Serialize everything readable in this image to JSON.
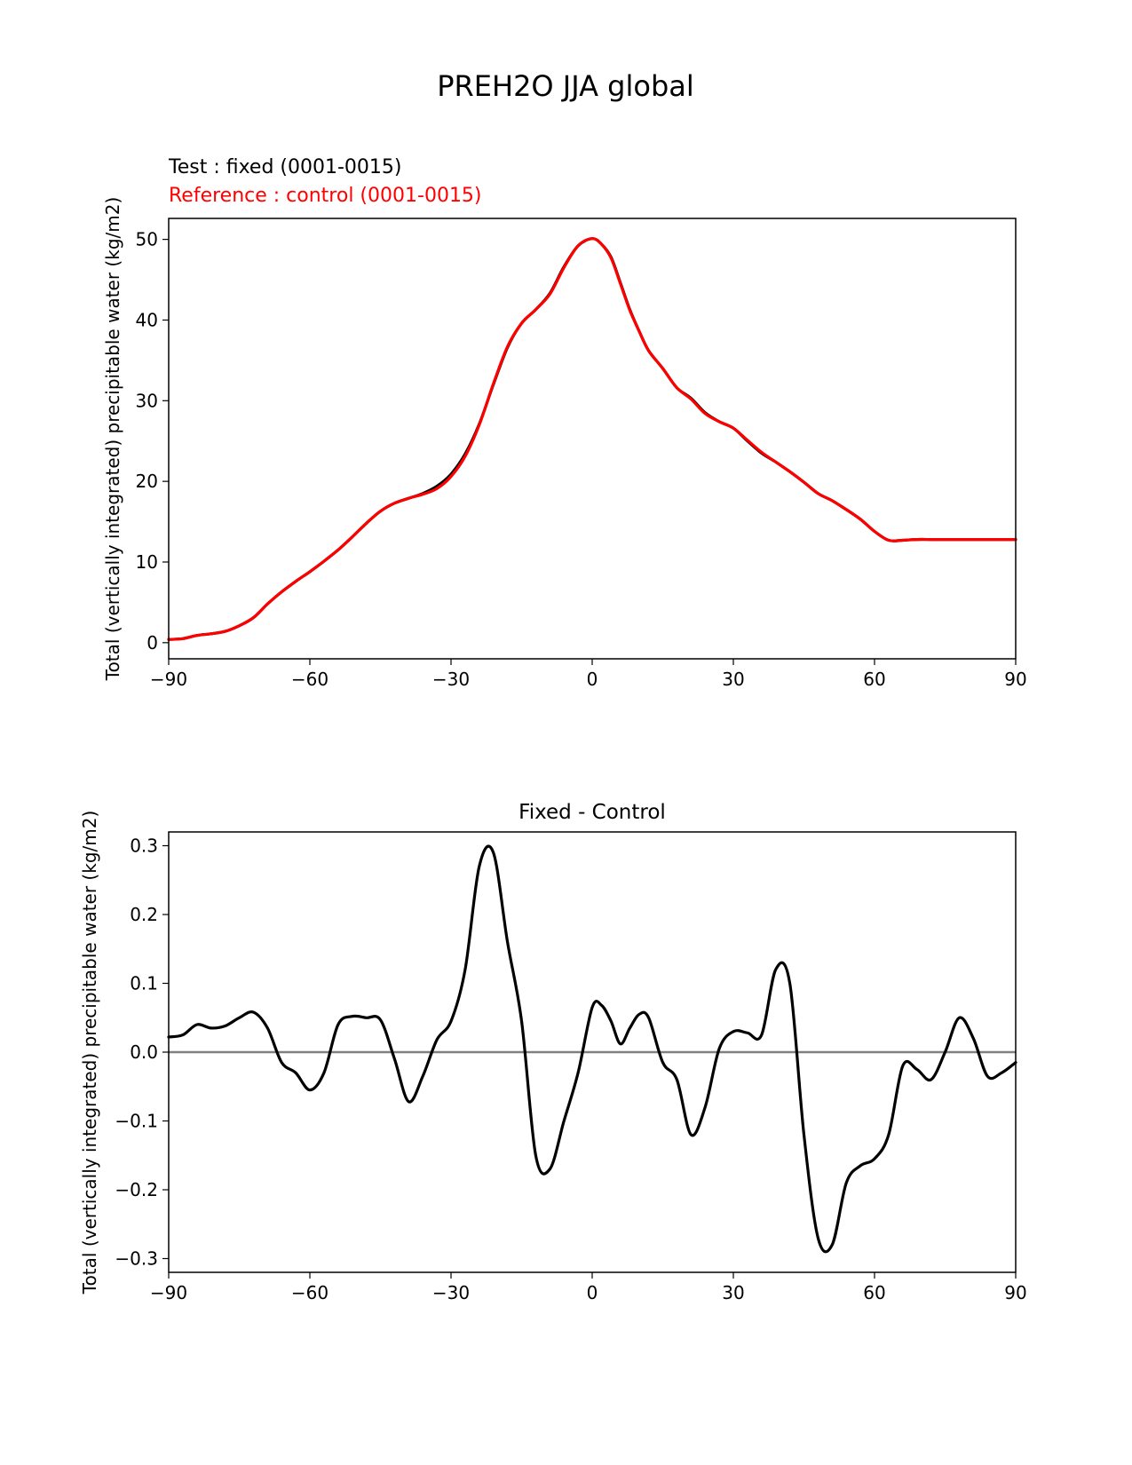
{
  "figure": {
    "title": "PREH2O JJA global"
  },
  "chart_data": [
    {
      "type": "line",
      "title": "",
      "legend_lines": [
        "Test : fixed (0001-0015)",
        "Reference : control (0001-0015)"
      ],
      "xlabel": "",
      "ylabel": "Total (vertically integrated) precipitable water (kg/m2)",
      "xlim": [
        -90,
        90
      ],
      "ylim": [
        -2,
        52.6
      ],
      "xticks": [
        -90,
        -60,
        -30,
        0,
        30,
        60,
        90
      ],
      "xtick_labels": [
        "−90",
        "−60",
        "−30",
        "0",
        "30",
        "60",
        "90"
      ],
      "yticks": [
        0,
        10,
        20,
        30,
        40,
        50
      ],
      "ytick_labels": [
        "0",
        "10",
        "20",
        "30",
        "40",
        "50"
      ],
      "grid": false,
      "series": [
        {
          "name": "Test : fixed (0001-0015)",
          "color": "#000000",
          "x": [
            -90,
            -87,
            -84,
            -81,
            -78,
            -75,
            -72,
            -69,
            -66,
            -63,
            -60,
            -57,
            -54,
            -51,
            -48,
            -45,
            -42,
            -39,
            -36,
            -33,
            -30,
            -27,
            -24,
            -21,
            -18,
            -15,
            -12,
            -9,
            -6,
            -3,
            0,
            2,
            4,
            6,
            8,
            10,
            12,
            15,
            18,
            21,
            24,
            27,
            30,
            33,
            36,
            39,
            42,
            45,
            48,
            51,
            54,
            57,
            60,
            63,
            66,
            69,
            72,
            75,
            78,
            81,
            84,
            87,
            90
          ],
          "y": [
            0.4,
            0.5,
            0.9,
            1.1,
            1.4,
            2.1,
            3.1,
            4.8,
            6.3,
            7.6,
            8.8,
            10.1,
            11.5,
            13.1,
            14.8,
            16.3,
            17.3,
            17.9,
            18.5,
            19.4,
            20.9,
            23.4,
            27.1,
            32.0,
            36.6,
            39.6,
            41.3,
            43.3,
            46.6,
            49.2,
            50.1,
            49.4,
            47.8,
            44.6,
            41.3,
            38.6,
            36.2,
            34.0,
            31.6,
            30.3,
            28.5,
            27.4,
            26.6,
            25.0,
            23.5,
            22.4,
            21.2,
            19.9,
            18.5,
            17.6,
            16.5,
            15.3,
            13.8,
            12.7,
            12.7,
            12.8,
            12.8,
            12.8,
            12.8,
            12.8,
            12.8,
            12.8,
            12.8
          ]
        },
        {
          "name": "Reference : control (0001-0015)",
          "color": "#ff0000",
          "x": [
            -90,
            -87,
            -84,
            -81,
            -78,
            -75,
            -72,
            -69,
            -66,
            -63,
            -60,
            -57,
            -54,
            -51,
            -48,
            -45,
            -42,
            -39,
            -36,
            -33,
            -30,
            -27,
            -24,
            -21,
            -18,
            -15,
            -12,
            -9,
            -6,
            -3,
            0,
            2,
            4,
            6,
            8,
            10,
            12,
            15,
            18,
            21,
            24,
            27,
            30,
            33,
            36,
            39,
            42,
            45,
            48,
            51,
            54,
            57,
            60,
            63,
            66,
            69,
            72,
            75,
            78,
            81,
            84,
            87,
            90
          ],
          "y": [
            0.4,
            0.5,
            0.9,
            1.1,
            1.4,
            2.1,
            3.1,
            4.8,
            6.3,
            7.6,
            8.8,
            10.1,
            11.5,
            13.1,
            14.8,
            16.3,
            17.3,
            17.9,
            18.4,
            19.1,
            20.6,
            23.1,
            27.0,
            32.1,
            36.7,
            39.6,
            41.3,
            43.2,
            46.5,
            49.2,
            50.1,
            49.4,
            47.7,
            44.5,
            41.2,
            38.6,
            36.2,
            34.0,
            31.6,
            30.2,
            28.4,
            27.4,
            26.6,
            25.1,
            23.6,
            22.4,
            21.2,
            19.9,
            18.5,
            17.6,
            16.5,
            15.3,
            13.8,
            12.7,
            12.7,
            12.8,
            12.8,
            12.8,
            12.8,
            12.8,
            12.8,
            12.8,
            12.8
          ]
        }
      ]
    },
    {
      "type": "line",
      "title": "Fixed - Control",
      "xlabel": "",
      "ylabel": "Total (vertically integrated) precipitable water (kg/m2)",
      "xlim": [
        -90,
        90
      ],
      "ylim": [
        -0.32,
        0.32
      ],
      "xticks": [
        -90,
        -60,
        -30,
        0,
        30,
        60,
        90
      ],
      "xtick_labels": [
        "−90",
        "−60",
        "−30",
        "0",
        "30",
        "60",
        "90"
      ],
      "yticks": [
        0.3,
        0.2,
        0.1,
        0.0,
        -0.1,
        -0.2,
        -0.3
      ],
      "ytick_labels": [
        "0.3",
        "0.2",
        "0.1",
        "0.0",
        "−0.1",
        "−0.2",
        "−0.3"
      ],
      "grid": false,
      "zero_line_color": "#808080",
      "series": [
        {
          "color": "#000000",
          "x": [
            -90,
            -87,
            -84,
            -81,
            -78,
            -75,
            -72,
            -69,
            -66,
            -63,
            -60,
            -57,
            -54,
            -51,
            -48,
            -45,
            -42,
            -39,
            -36,
            -33,
            -30,
            -27,
            -24,
            -21,
            -18,
            -15,
            -12,
            -9,
            -6,
            -3,
            0,
            2,
            4,
            6,
            8,
            10,
            12,
            15,
            18,
            21,
            24,
            27,
            30,
            33,
            36,
            39,
            42,
            45,
            48,
            51,
            54,
            57,
            60,
            63,
            66,
            69,
            72,
            75,
            78,
            81,
            84,
            87,
            90
          ],
          "y": [
            0.022,
            0.025,
            0.04,
            0.035,
            0.038,
            0.05,
            0.058,
            0.035,
            -0.015,
            -0.03,
            -0.055,
            -0.03,
            0.04,
            0.052,
            0.05,
            0.047,
            -0.01,
            -0.072,
            -0.035,
            0.018,
            0.045,
            0.12,
            0.27,
            0.29,
            0.16,
            0.045,
            -0.15,
            -0.17,
            -0.1,
            -0.03,
            0.065,
            0.068,
            0.045,
            0.012,
            0.035,
            0.055,
            0.05,
            -0.015,
            -0.04,
            -0.12,
            -0.08,
            0.005,
            0.03,
            0.028,
            0.025,
            0.12,
            0.1,
            -0.12,
            -0.27,
            -0.28,
            -0.19,
            -0.165,
            -0.155,
            -0.12,
            -0.02,
            -0.025,
            -0.04,
            0.0,
            0.05,
            0.02,
            -0.035,
            -0.03,
            -0.015
          ]
        }
      ]
    }
  ]
}
